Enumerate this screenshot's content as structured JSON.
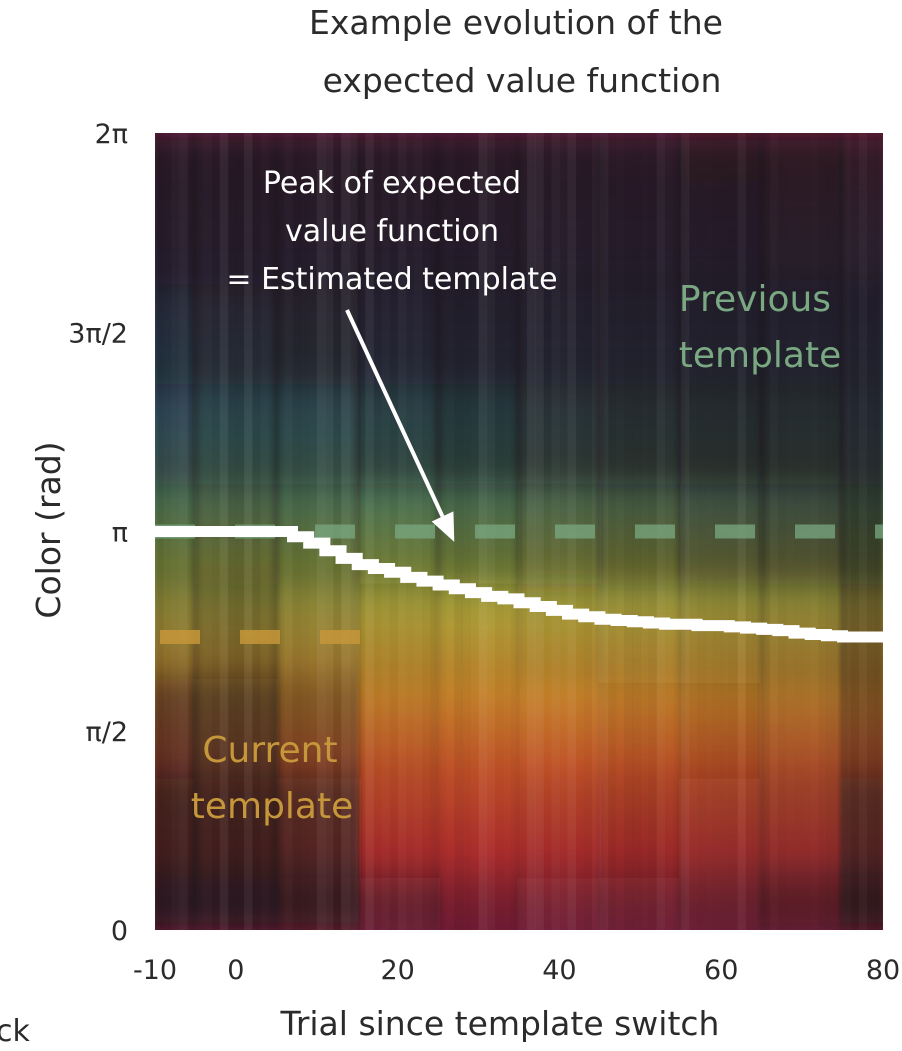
{
  "colors": {
    "peak_line": "#ffffff",
    "previous_template": "#7aa882",
    "current_template": "#c6973a",
    "annotation": "#ffffff",
    "background_dark": "#242021"
  },
  "edge_fragment": "ck",
  "chart_data": {
    "type": "heatmap",
    "title": "Example evolution of the expected value function",
    "title_lines": [
      "Example evolution of the",
      "expected value function"
    ],
    "xlabel": "Trial since template switch",
    "ylabel": "Color (rad)",
    "xlim": [
      -10,
      80
    ],
    "ylim": [
      0,
      6.2832
    ],
    "x_ticks": [
      {
        "value": -10,
        "label": "-10"
      },
      {
        "value": 0,
        "label": "0"
      },
      {
        "value": 20,
        "label": "20"
      },
      {
        "value": 40,
        "label": "40"
      },
      {
        "value": 60,
        "label": "60"
      },
      {
        "value": 80,
        "label": "80"
      }
    ],
    "y_ticks": [
      {
        "value": 0,
        "label": "0"
      },
      {
        "value": 1.5708,
        "label": "π/2"
      },
      {
        "value": 3.1416,
        "label": "π"
      },
      {
        "value": 4.7124,
        "label": "3π/2"
      },
      {
        "value": 6.2832,
        "label": "2π"
      }
    ],
    "colormap": "color wheel hue (rad), brightness = expected value",
    "previous_template": {
      "label_lines": [
        "Previous",
        "template"
      ],
      "value": 3.1416
    },
    "current_template": {
      "label_lines": [
        "Current",
        "template"
      ],
      "value": 2.31
    },
    "peak_annotation": {
      "lines": [
        "Peak of expected",
        "value function",
        "= Estimated template"
      ],
      "arrow_to": [
        27,
        3.06
      ]
    },
    "peak_series": {
      "x": [
        -10,
        5,
        7,
        9,
        11,
        13,
        15,
        17,
        19,
        21,
        23,
        25,
        27,
        29,
        31,
        33,
        35,
        37,
        39,
        41,
        43,
        45,
        47,
        49,
        51,
        53,
        55,
        57,
        59,
        61,
        63,
        65,
        67,
        69,
        71,
        73,
        75,
        77,
        80
      ],
      "y": [
        3.1416,
        3.1416,
        3.1,
        3.05,
        2.99,
        2.93,
        2.88,
        2.85,
        2.82,
        2.78,
        2.75,
        2.72,
        2.69,
        2.66,
        2.63,
        2.61,
        2.58,
        2.55,
        2.52,
        2.49,
        2.47,
        2.45,
        2.44,
        2.43,
        2.42,
        2.41,
        2.41,
        2.4,
        2.4,
        2.39,
        2.38,
        2.37,
        2.36,
        2.34,
        2.33,
        2.32,
        2.31,
        2.31,
        2.31
      ]
    },
    "heatmap_intensity": {
      "x": [
        -10,
        0,
        10,
        20,
        30,
        40,
        50,
        60,
        70,
        80
      ],
      "y": [
        0,
        0.7854,
        1.5708,
        2.3562,
        3.1416,
        3.927,
        4.7124,
        5.4978,
        6.2832
      ],
      "values": [
        [
          0.05,
          0.05,
          0.15,
          0.65,
          0.85,
          0.8,
          0.75,
          0.7,
          0.5,
          0.1
        ],
        [
          0.15,
          0.15,
          0.3,
          0.9,
          0.95,
          0.9,
          0.85,
          0.8,
          0.75,
          0.3
        ],
        [
          0.35,
          0.3,
          0.55,
          0.9,
          0.95,
          0.95,
          0.9,
          0.85,
          0.8,
          0.5
        ],
        [
          0.65,
          0.55,
          0.7,
          0.85,
          0.9,
          0.85,
          0.8,
          0.75,
          0.7,
          0.45
        ],
        [
          0.55,
          0.5,
          0.55,
          0.6,
          0.55,
          0.5,
          0.45,
          0.4,
          0.35,
          0.2
        ],
        [
          0.35,
          0.3,
          0.3,
          0.25,
          0.2,
          0.15,
          0.12,
          0.1,
          0.1,
          0.08
        ],
        [
          0.2,
          0.15,
          0.1,
          0.08,
          0.05,
          0.05,
          0.05,
          0.05,
          0.05,
          0.05
        ],
        [
          0.05,
          0.05,
          0.05,
          0.05,
          0.05,
          0.05,
          0.05,
          0.05,
          0.1,
          0.15
        ],
        [
          0.05,
          0.05,
          0.05,
          0.05,
          0.05,
          0.05,
          0.08,
          0.1,
          0.12,
          0.18
        ]
      ]
    }
  }
}
